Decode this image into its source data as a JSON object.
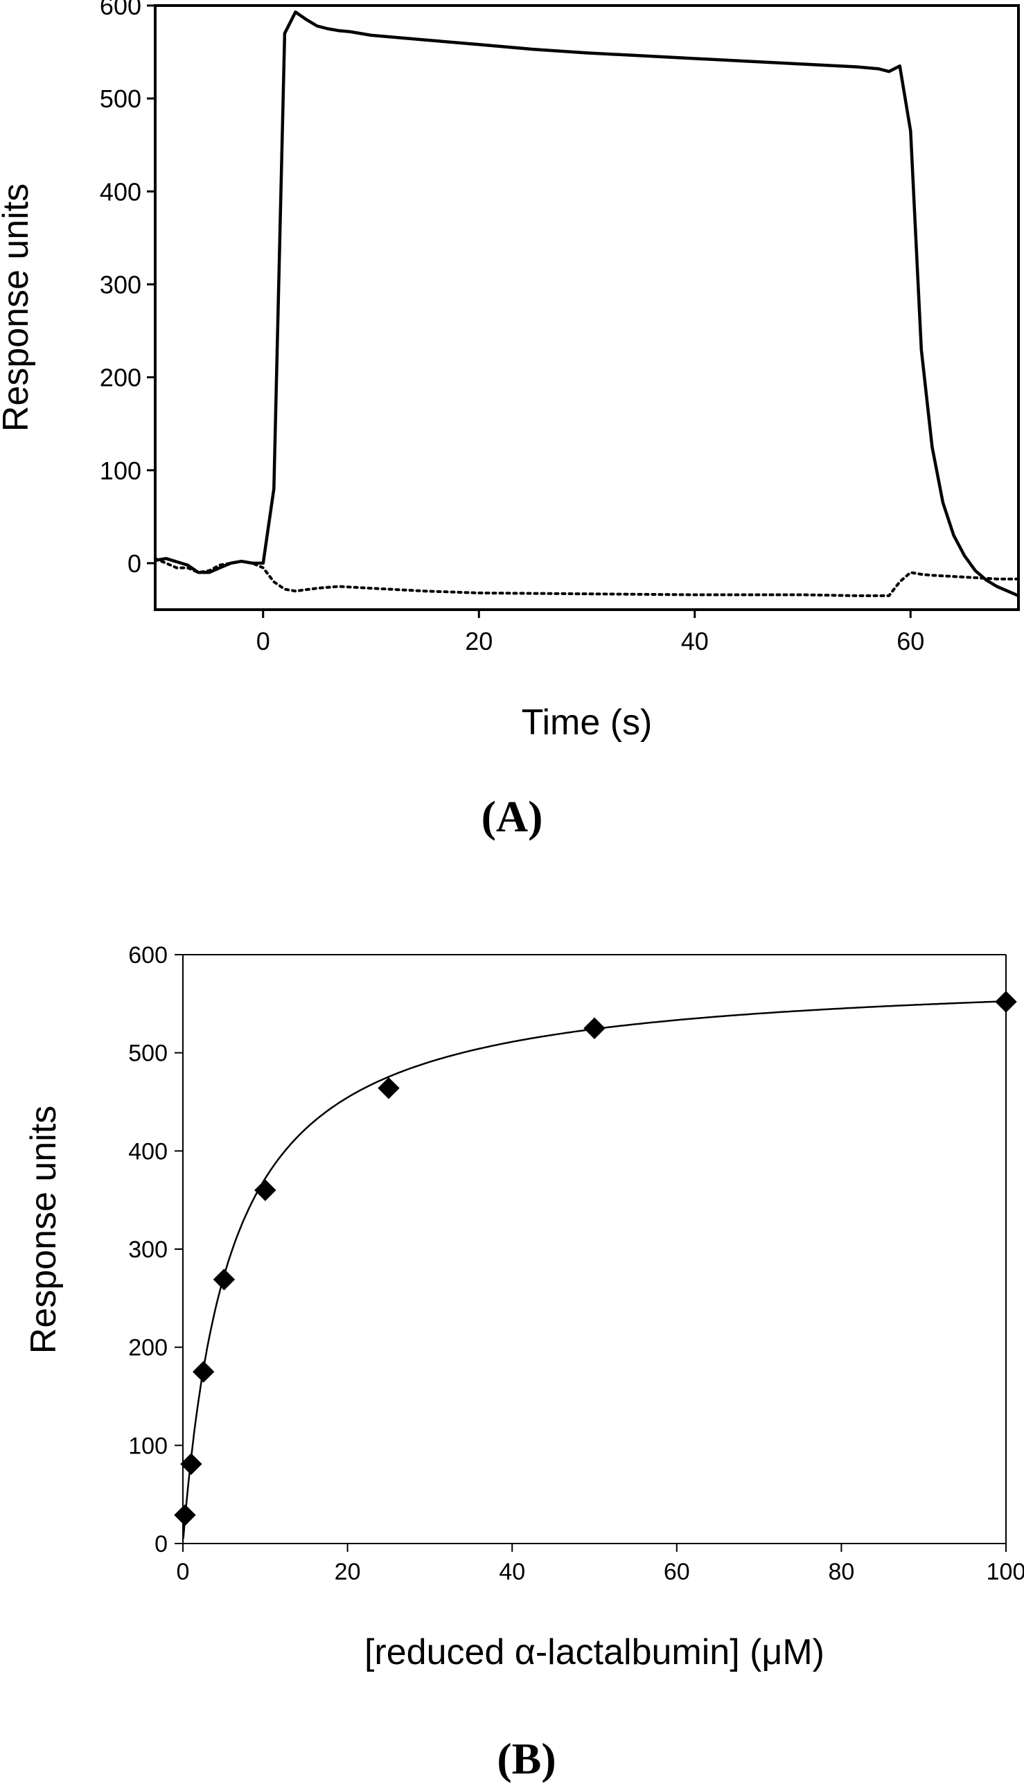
{
  "chart_data": [
    {
      "type": "line",
      "panel_label": "(A)",
      "xlabel": "Time (s)",
      "ylabel": "Response units",
      "xlim": [
        -10,
        70
      ],
      "ylim": [
        -50,
        600
      ],
      "xticks": [
        0,
        20,
        40,
        60
      ],
      "yticks": [
        0,
        100,
        200,
        300,
        400,
        500,
        600
      ],
      "grid": false,
      "series": [
        {
          "name": "solid",
          "style": "solid",
          "x": [
            -10,
            -9,
            -7,
            -6,
            -5,
            -4,
            -3,
            -2,
            -1,
            0,
            1,
            2,
            3,
            4,
            5,
            6,
            7,
            8,
            10,
            15,
            20,
            25,
            30,
            35,
            40,
            45,
            50,
            55,
            57,
            58,
            59,
            60,
            61,
            62,
            63,
            64,
            65,
            66,
            67,
            68,
            69,
            70
          ],
          "y": [
            3,
            5,
            -2,
            -10,
            -10,
            -5,
            0,
            2,
            0,
            0,
            80,
            570,
            593,
            585,
            578,
            575,
            573,
            572,
            568,
            563,
            558,
            553,
            549,
            546,
            543,
            540,
            537,
            534,
            532,
            529,
            535,
            465,
            230,
            125,
            65,
            30,
            8,
            -8,
            -18,
            -25,
            -30,
            -35
          ]
        },
        {
          "name": "dotted",
          "style": "dotted",
          "x": [
            -10,
            -8,
            -7,
            -6,
            -5,
            -4,
            -3,
            -2,
            -1,
            0,
            1,
            2,
            3,
            5,
            7,
            10,
            15,
            20,
            30,
            40,
            50,
            55,
            58,
            59,
            60,
            61,
            62,
            65,
            68,
            70
          ],
          "y": [
            5,
            -5,
            -5,
            -10,
            -8,
            -2,
            0,
            2,
            0,
            -5,
            -20,
            -28,
            -30,
            -27,
            -25,
            -27,
            -30,
            -32,
            -33,
            -34,
            -34,
            -35,
            -35,
            -20,
            -10,
            -12,
            -13,
            -15,
            -17,
            -17
          ]
        }
      ]
    },
    {
      "type": "scatter",
      "panel_label": "(B)",
      "xlabel": "[reduced α-lactalbumin] (μM)",
      "ylabel": "Response units",
      "xlim": [
        0,
        100
      ],
      "ylim": [
        0,
        600
      ],
      "xticks": [
        0,
        20,
        40,
        60,
        80,
        100
      ],
      "yticks": [
        0,
        100,
        200,
        300,
        400,
        500,
        600
      ],
      "grid": false,
      "series": [
        {
          "name": "data",
          "marker": "diamond",
          "x": [
            0.25,
            1,
            2.5,
            5,
            10,
            25,
            50,
            100
          ],
          "y": [
            29,
            81,
            175,
            269,
            360,
            464,
            525,
            552
          ]
        }
      ],
      "fit": {
        "type": "hyperbolic",
        "Rmax": 584,
        "Kd": 5.7
      }
    }
  ]
}
